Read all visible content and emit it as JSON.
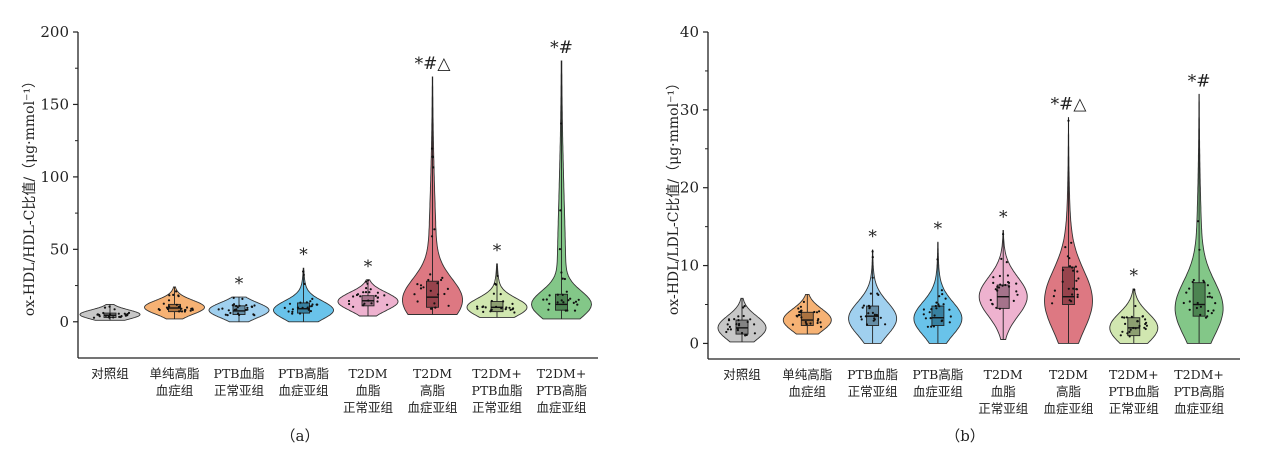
{
  "chart_data": [
    {
      "type": "violin",
      "panel_label": "（a）",
      "ylabel": "ox-HDL/HDL-C比值/（μg·mmol⁻¹）",
      "ylim": [
        -25,
        200
      ],
      "yticks": [
        0,
        50,
        100,
        150,
        200
      ],
      "categories": [
        {
          "lines": [
            "对照组"
          ],
          "color": "#bdbdbd",
          "min": 1,
          "max": 12,
          "q1": 3,
          "median": 4.5,
          "q3": 6,
          "mode": 5,
          "sig": ""
        },
        {
          "lines": [
            "单纯高脂",
            "血症组"
          ],
          "color": "#f5a55c",
          "min": 2,
          "max": 24,
          "q1": 7,
          "median": 9.5,
          "q3": 12,
          "mode": 10,
          "sig": ""
        },
        {
          "lines": [
            "PTB血脂",
            "正常亚组"
          ],
          "color": "#8fc8ec",
          "min": 0,
          "max": 17,
          "q1": 5,
          "median": 7.5,
          "q3": 11,
          "mode": 8,
          "sig": "*"
        },
        {
          "lines": [
            "PTB高脂",
            "血症亚组"
          ],
          "color": "#4fb8e6",
          "min": 0,
          "max": 37,
          "q1": 6,
          "median": 9,
          "q3": 13,
          "mode": 8,
          "sig": "*"
        },
        {
          "lines": [
            "T2DM",
            "血脂",
            "正常亚组"
          ],
          "color": "#eba5c7",
          "min": 4,
          "max": 29,
          "q1": 11,
          "median": 14.5,
          "q3": 18,
          "mode": 14,
          "sig": "*"
        },
        {
          "lines": [
            "T2DM",
            "高脂",
            "血症亚组"
          ],
          "color": "#d7606c",
          "min": 5,
          "max": 169,
          "q1": 10,
          "median": 17,
          "q3": 28,
          "mode": 15,
          "sig": "*#△"
        },
        {
          "lines": [
            "T2DM+",
            "PTB血脂",
            "正常亚组"
          ],
          "color": "#c9e3a2",
          "min": 3,
          "max": 40,
          "q1": 7,
          "median": 10,
          "q3": 14,
          "mode": 10,
          "sig": "*"
        },
        {
          "lines": [
            "T2DM+",
            "PTB高脂",
            "血症亚组"
          ],
          "color": "#6dbd73",
          "min": 2,
          "max": 180,
          "q1": 8,
          "median": 12,
          "q3": 19,
          "mode": 12,
          "sig": "*#"
        }
      ]
    },
    {
      "type": "violin",
      "panel_label": "（b）",
      "ylabel": "ox-HDL/LDL-C比值/（μg·mmol⁻¹）",
      "ylim": [
        -2,
        40
      ],
      "yticks": [
        0,
        10,
        20,
        30,
        40
      ],
      "categories": [
        {
          "lines": [
            "对照组"
          ],
          "color": "#bdbdbd",
          "min": 0.2,
          "max": 5.8,
          "q1": 1.2,
          "median": 2,
          "q3": 3,
          "mode": 2,
          "sig": ""
        },
        {
          "lines": [
            "单纯高脂",
            "血症组"
          ],
          "color": "#f5a55c",
          "min": 1.2,
          "max": 6.3,
          "q1": 2.3,
          "median": 3,
          "q3": 4,
          "mode": 3,
          "sig": ""
        },
        {
          "lines": [
            "PTB血脂",
            "正常亚组"
          ],
          "color": "#8fc8ec",
          "min": 0,
          "max": 12,
          "q1": 2.3,
          "median": 3.5,
          "q3": 4.8,
          "mode": 3.2,
          "sig": "*"
        },
        {
          "lines": [
            "PTB高脂",
            "血症亚组"
          ],
          "color": "#4fb8e6",
          "min": 0,
          "max": 13,
          "q1": 2.3,
          "median": 3.3,
          "q3": 4.8,
          "mode": 3.2,
          "sig": "*"
        },
        {
          "lines": [
            "T2DM",
            "血脂",
            "正常亚组"
          ],
          "color": "#eba5c7",
          "min": 0.5,
          "max": 14.5,
          "q1": 4.5,
          "median": 6,
          "q3": 7.5,
          "mode": 6,
          "sig": "*"
        },
        {
          "lines": [
            "T2DM",
            "高脂",
            "血症亚组"
          ],
          "color": "#d7606c",
          "min": 0,
          "max": 29,
          "q1": 5,
          "median": 6,
          "q3": 9.8,
          "mode": 5.5,
          "sig": "*#△"
        },
        {
          "lines": [
            "T2DM+",
            "PTB血脂",
            "正常亚组"
          ],
          "color": "#c9e3a2",
          "min": 0,
          "max": 7,
          "q1": 1,
          "median": 2,
          "q3": 3.3,
          "mode": 2,
          "sig": "*"
        },
        {
          "lines": [
            "T2DM+",
            "PTB高脂",
            "血症亚组"
          ],
          "color": "#6dbd73",
          "min": 0,
          "max": 32,
          "q1": 3.5,
          "median": 5,
          "q3": 7.8,
          "mode": 4.5,
          "sig": "*#"
        }
      ]
    }
  ]
}
